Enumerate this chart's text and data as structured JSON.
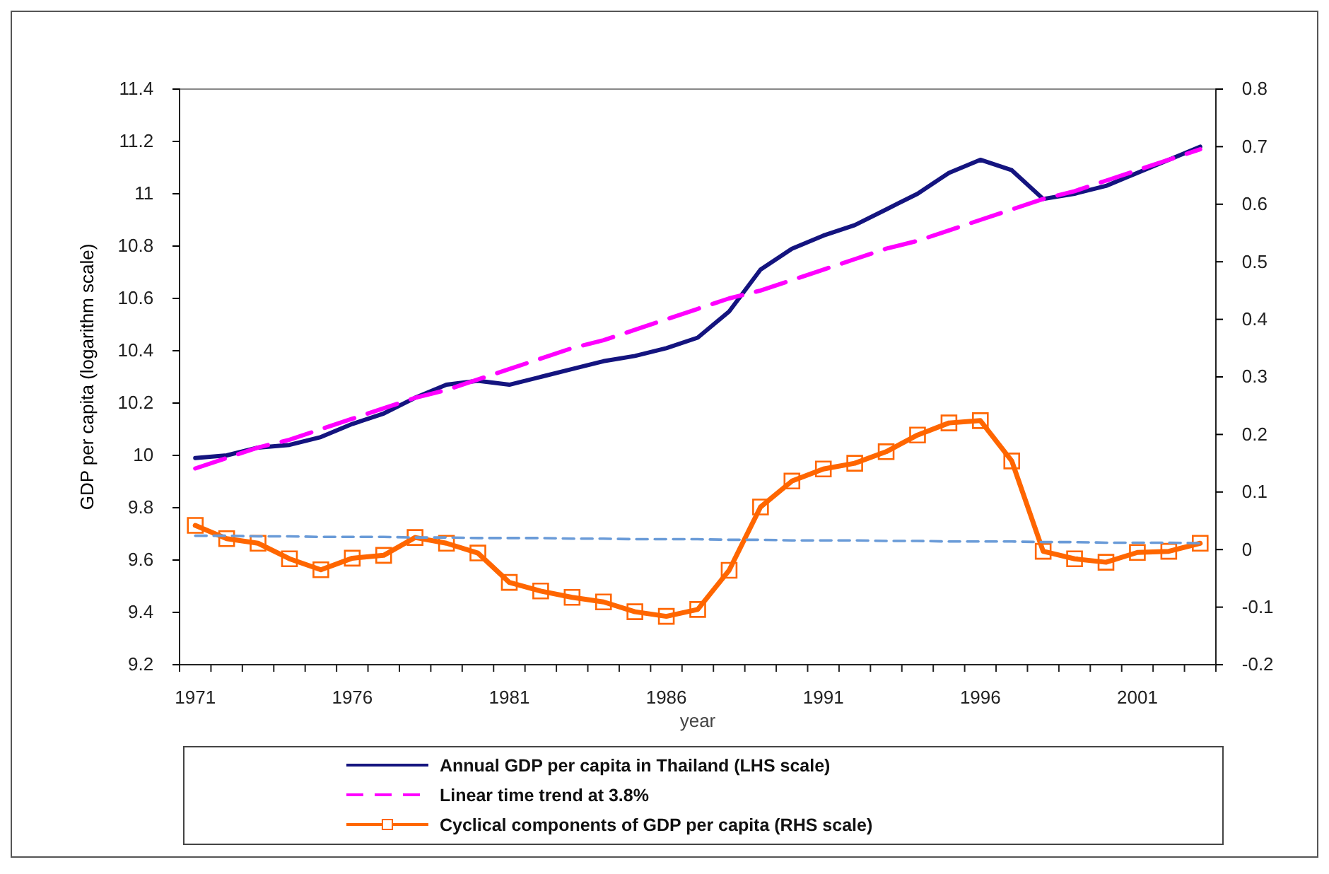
{
  "chart_data": {
    "type": "line",
    "xlabel": "year",
    "ylabel": "GDP per capita (logarithm scale)",
    "categories": [
      "1971",
      null,
      null,
      null,
      null,
      "1976",
      null,
      null,
      null,
      null,
      "1981",
      null,
      null,
      null,
      null,
      "1986",
      null,
      null,
      null,
      null,
      "1991",
      null,
      null,
      null,
      null,
      "1996",
      null,
      null,
      null,
      null,
      "2001",
      null,
      null
    ],
    "ylim": [
      9.2,
      11.4
    ],
    "yticks": [
      9.2,
      9.4,
      9.6,
      9.8,
      {
        "value": 10,
        "label": "10"
      },
      10.2,
      10.4,
      10.6,
      10.8,
      {
        "value": 11,
        "label": "11"
      },
      11.2,
      11.4
    ],
    "y2lim": [
      -0.2,
      0.8
    ],
    "y2ticks": [
      -0.2,
      -0.1,
      {
        "value": 0,
        "label": "0"
      },
      0.1,
      0.2,
      0.3,
      0.4,
      0.5,
      0.6,
      0.7,
      0.8
    ],
    "grid": false,
    "legend": "bottom",
    "series": [
      {
        "name": "Annual GDP per capita in Thailand (LHS scale)",
        "color": "#14147f",
        "line_style": "solid",
        "marker": "none",
        "values": [
          9.99,
          10.0,
          10.03,
          10.04,
          10.07,
          10.12,
          10.16,
          10.22,
          10.27,
          10.285,
          10.27,
          10.3,
          10.33,
          10.36,
          10.38,
          10.41,
          10.45,
          10.55,
          10.71,
          10.79,
          10.84,
          10.88,
          10.94,
          11.0,
          11.08,
          11.13,
          11.09,
          10.98,
          11.0,
          11.03,
          11.08,
          11.13,
          11.18
        ]
      },
      {
        "name": "Linear time trend at 3.8%",
        "color": "#ff00ff",
        "line_style": "dashed",
        "marker": "none",
        "values": [
          9.95,
          9.99,
          10.03,
          10.06,
          10.1,
          10.14,
          10.18,
          10.22,
          10.25,
          10.29,
          10.33,
          10.37,
          10.41,
          10.44,
          10.48,
          10.52,
          10.56,
          10.6,
          10.63,
          10.67,
          10.71,
          10.75,
          10.79,
          10.82,
          10.86,
          10.9,
          10.94,
          10.98,
          11.01,
          11.05,
          11.09,
          11.13,
          11.17
        ]
      },
      {
        "name": "Cyclical components  of GDP per capita (RHS scale)",
        "color": "#ff6600",
        "axis": "y2",
        "line_style": "solid",
        "marker": "square",
        "values": [
          0.042,
          0.019,
          0.011,
          -0.016,
          -0.035,
          -0.015,
          -0.01,
          0.021,
          0.011,
          -0.006,
          -0.057,
          -0.072,
          -0.083,
          -0.091,
          -0.108,
          -0.116,
          -0.104,
          -0.036,
          0.074,
          0.119,
          0.14,
          0.15,
          0.17,
          0.199,
          0.22,
          0.224,
          0.154,
          -0.003,
          -0.016,
          -0.022,
          -0.005,
          -0.003,
          0.011
        ]
      },
      {
        "color": "#6a9bd8",
        "axis": "y2",
        "line_style": "dashed",
        "marker": "none",
        "values": [
          0.024,
          0.024,
          0.023,
          0.023,
          0.022,
          0.022,
          0.022,
          0.021,
          0.021,
          0.02,
          0.02,
          0.02,
          0.019,
          0.019,
          0.018,
          0.018,
          0.018,
          0.017,
          0.017,
          0.016,
          0.016,
          0.016,
          0.015,
          0.015,
          0.014,
          0.014,
          0.014,
          0.013,
          0.013,
          0.012,
          0.012,
          0.012,
          0.011
        ]
      }
    ]
  }
}
